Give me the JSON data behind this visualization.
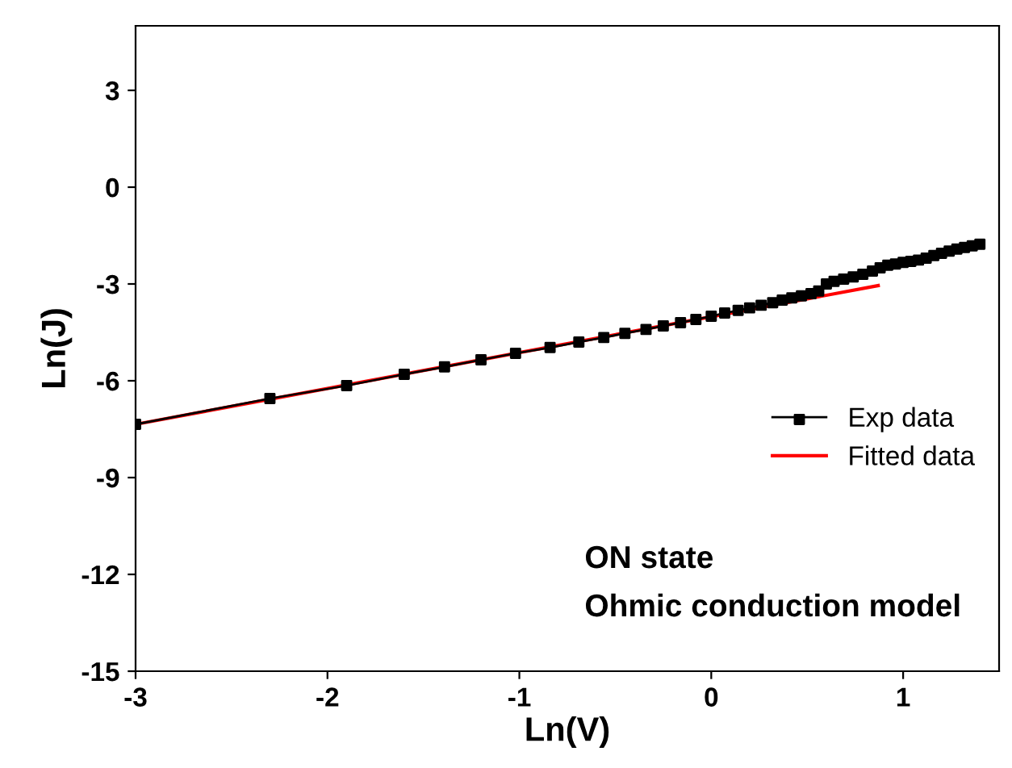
{
  "chart_data": {
    "type": "line",
    "marker": "square",
    "xlabel": "Ln(V)",
    "ylabel": "Ln(J)",
    "xlim": [
      -3,
      1.5
    ],
    "ylim": [
      -15,
      5
    ],
    "xticks": [
      -3,
      -2,
      -1,
      0,
      1
    ],
    "yticks": [
      -15,
      -12,
      -9,
      -6,
      -3,
      0,
      3
    ],
    "legend": "right",
    "grid": false,
    "annotations": [
      "ON state",
      "Ohmic conduction model"
    ],
    "series": [
      {
        "name": "Exp data",
        "color": "#000000",
        "x": [
          -3,
          -2.3,
          -1.9,
          -1.6,
          -1.39,
          -1.2,
          -1.02,
          -0.84,
          -0.69,
          -0.56,
          -0.45,
          -0.34,
          -0.25,
          -0.16,
          -0.08,
          0,
          0.07,
          0.14,
          0.2,
          0.26,
          0.32,
          0.37,
          0.42,
          0.47,
          0.52,
          0.56,
          0.6,
          0.64,
          0.69,
          0.74,
          0.79,
          0.84,
          0.88,
          0.92,
          0.96,
          1.0,
          1.04,
          1.08,
          1.12,
          1.16,
          1.2,
          1.24,
          1.28,
          1.32,
          1.36,
          1.4
        ],
        "values": [
          -7.35,
          -6.55,
          -6.15,
          -5.8,
          -5.57,
          -5.35,
          -5.15,
          -4.97,
          -4.8,
          -4.66,
          -4.53,
          -4.41,
          -4.3,
          -4.2,
          -4.1,
          -4.0,
          -3.9,
          -3.82,
          -3.74,
          -3.66,
          -3.58,
          -3.5,
          -3.43,
          -3.37,
          -3.3,
          -3.22,
          -3.0,
          -2.92,
          -2.85,
          -2.78,
          -2.7,
          -2.6,
          -2.5,
          -2.42,
          -2.38,
          -2.33,
          -2.3,
          -2.26,
          -2.2,
          -2.12,
          -2.05,
          -1.98,
          -1.92,
          -1.87,
          -1.82,
          -1.77
        ]
      },
      {
        "name": "Fitted data",
        "marker": "none",
        "color": "#ff0000",
        "x": [
          -3,
          0.87
        ],
        "values": [
          -7.35,
          -3.05
        ]
      }
    ]
  }
}
